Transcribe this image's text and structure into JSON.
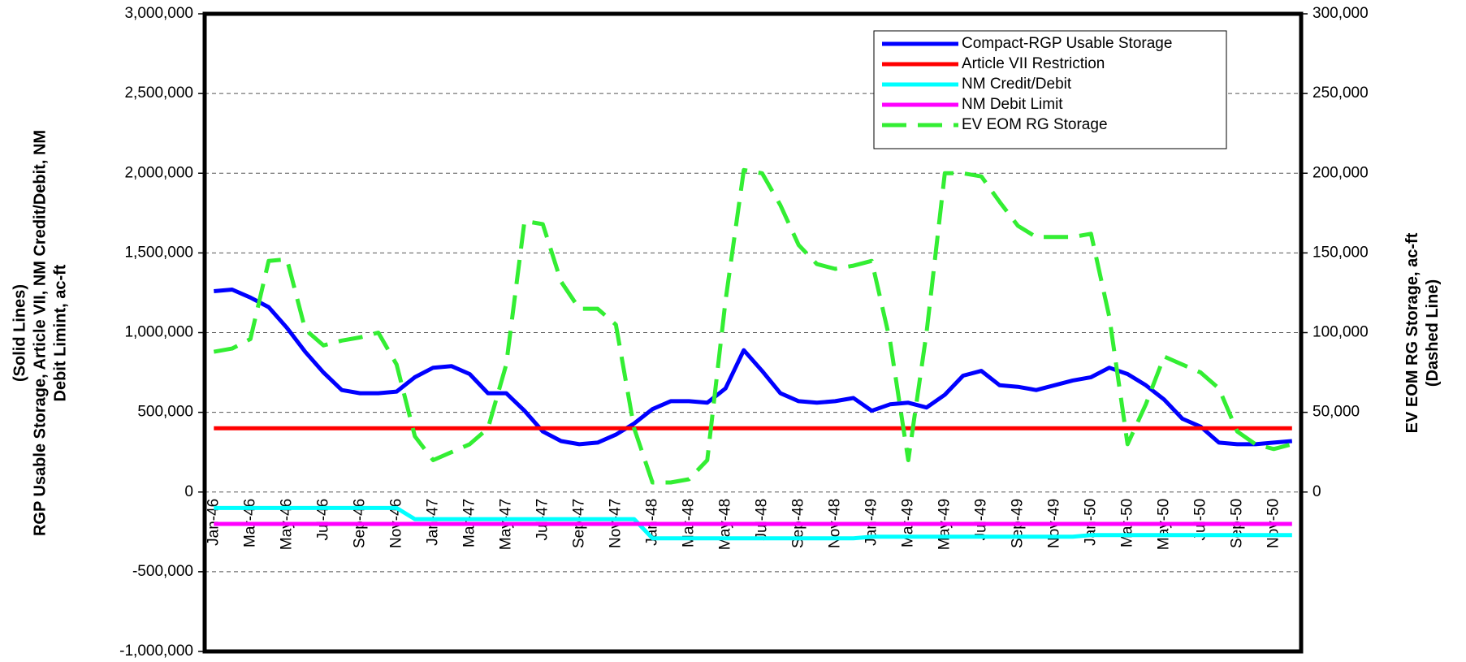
{
  "chart_data": {
    "type": "line",
    "y_label": [
      "(Solid Lines)",
      "RGP Usable Storage, Article VII, NM Credit/Debit, NM",
      "Debit Limint, ac-ft"
    ],
    "y2_label": [
      "EV EOM RG Storage, ac-ft",
      "(Dashed Line)"
    ],
    "categories": [
      "Jan-46",
      null,
      "Mar-46",
      null,
      "May-46",
      null,
      "Jul-46",
      null,
      "Sep-46",
      null,
      "Nov-46",
      null,
      "Jan-47",
      null,
      "Mar-47",
      null,
      "May-47",
      null,
      "Jul-47",
      null,
      "Sep-47",
      null,
      "Nov-47",
      null,
      "Jan-48",
      null,
      "Mar-48",
      null,
      "May-48",
      null,
      "Jul-48",
      null,
      "Sep-48",
      null,
      "Nov-48",
      null,
      "Jan-49",
      null,
      "Mar-49",
      null,
      "May-49",
      null,
      "Jul-49",
      null,
      "Sep-49",
      null,
      "Nov-49",
      null,
      "Jan-50",
      null,
      "Mar-50",
      null,
      "May-50",
      null,
      "Jul-50",
      null,
      "Sep-50",
      null,
      "Nov-50",
      null
    ],
    "series": [
      {
        "name": "Compact-RGP Usable Storage",
        "color": "#0000ff",
        "line_style": "solid",
        "values": [
          1260000,
          1270000,
          1220000,
          1160000,
          1030000,
          880000,
          750000,
          640000,
          620000,
          620000,
          630000,
          720000,
          780000,
          790000,
          740000,
          620000,
          620000,
          510000,
          380000,
          320000,
          300000,
          310000,
          360000,
          430000,
          520000,
          570000,
          570000,
          560000,
          650000,
          890000,
          760000,
          620000,
          570000,
          560000,
          570000,
          590000,
          510000,
          550000,
          560000,
          530000,
          610000,
          730000,
          760000,
          670000,
          660000,
          640000,
          670000,
          700000,
          720000,
          780000,
          740000,
          670000,
          580000,
          460000,
          410000,
          310000,
          300000,
          300000,
          310000,
          320000
        ]
      },
      {
        "name": "Article VII Restriction",
        "color": "#ff0000",
        "line_style": "solid",
        "values": [
          400000,
          400000,
          400000,
          400000,
          400000,
          400000,
          400000,
          400000,
          400000,
          400000,
          400000,
          400000,
          400000,
          400000,
          400000,
          400000,
          400000,
          400000,
          400000,
          400000,
          400000,
          400000,
          400000,
          400000,
          400000,
          400000,
          400000,
          400000,
          400000,
          400000,
          400000,
          400000,
          400000,
          400000,
          400000,
          400000,
          400000,
          400000,
          400000,
          400000,
          400000,
          400000,
          400000,
          400000,
          400000,
          400000,
          400000,
          400000,
          400000,
          400000,
          400000,
          400000,
          400000,
          400000,
          400000,
          400000,
          400000,
          400000,
          400000,
          400000
        ]
      },
      {
        "name": "NM Credit/Debit",
        "color": "#00ffff",
        "line_style": "solid",
        "values": [
          -100000,
          -100000,
          -100000,
          -100000,
          -100000,
          -100000,
          -100000,
          -100000,
          -100000,
          -100000,
          -100000,
          -170000,
          -170000,
          -170000,
          -170000,
          -170000,
          -170000,
          -170000,
          -170000,
          -170000,
          -170000,
          -170000,
          -170000,
          -170000,
          -290000,
          -290000,
          -290000,
          -290000,
          -290000,
          -290000,
          -290000,
          -290000,
          -290000,
          -290000,
          -290000,
          -290000,
          -280000,
          -280000,
          -280000,
          -280000,
          -280000,
          -280000,
          -280000,
          -280000,
          -280000,
          -280000,
          -280000,
          -280000,
          -270000,
          -270000,
          -270000,
          -270000,
          -270000,
          -270000,
          -270000,
          -270000,
          -270000,
          -270000,
          -270000,
          -270000
        ]
      },
      {
        "name": "NM Debit Limit",
        "color": "#ff00ff",
        "line_style": "solid",
        "values": [
          -200000,
          -200000,
          -200000,
          -200000,
          -200000,
          -200000,
          -200000,
          -200000,
          -200000,
          -200000,
          -200000,
          -200000,
          -200000,
          -200000,
          -200000,
          -200000,
          -200000,
          -200000,
          -200000,
          -200000,
          -200000,
          -200000,
          -200000,
          -200000,
          -200000,
          -200000,
          -200000,
          -200000,
          -200000,
          -200000,
          -200000,
          -200000,
          -200000,
          -200000,
          -200000,
          -200000,
          -200000,
          -200000,
          -200000,
          -200000,
          -200000,
          -200000,
          -200000,
          -200000,
          -200000,
          -200000,
          -200000,
          -200000,
          -200000,
          -200000,
          -200000,
          -200000,
          -200000,
          -200000,
          -200000,
          -200000,
          -200000,
          -200000,
          -200000,
          -200000
        ]
      },
      {
        "name": "EV  EOM RG Storage",
        "color": "#33ee33",
        "line_style": "dashed",
        "axis": "y2",
        "values": [
          88000,
          90000,
          96000,
          145000,
          146000,
          102000,
          92000,
          95000,
          97000,
          100000,
          80000,
          35000,
          20000,
          25000,
          30000,
          40000,
          80000,
          170000,
          168000,
          132000,
          115000,
          115000,
          105000,
          40000,
          6000,
          6000,
          8000,
          20000,
          120000,
          202000,
          200000,
          180000,
          155000,
          143000,
          140000,
          142000,
          145000,
          95000,
          20000,
          100000,
          200000,
          200000,
          198000,
          182000,
          167000,
          160000,
          160000,
          160000,
          162000,
          110000,
          30000,
          55000,
          85000,
          80000,
          75000,
          65000,
          38000,
          30000,
          27000,
          30000
        ]
      }
    ],
    "ylim": [
      -1000000,
      3000000
    ],
    "yticks": [
      {
        "value": -1000000,
        "label": "-1,000,000"
      },
      {
        "value": -500000,
        "label": "-500,000"
      },
      0,
      {
        "value": 500000,
        "label": "500,000"
      },
      {
        "value": 1000000,
        "label": "1,000,000"
      },
      {
        "value": 1500000,
        "label": "1,500,000"
      },
      {
        "value": 2000000,
        "label": "2,000,000"
      },
      {
        "value": 2500000,
        "label": "2,500,000"
      },
      {
        "value": 3000000,
        "label": "3,000,000"
      }
    ],
    "y2lim": [
      -100000,
      300000
    ],
    "y2ticks": [
      0,
      {
        "value": 50000,
        "label": "50,000"
      },
      {
        "value": 100000,
        "label": "100,000"
      },
      {
        "value": 150000,
        "label": "150,000"
      },
      {
        "value": 200000,
        "label": "200,000"
      },
      {
        "value": 250000,
        "label": "250,000"
      },
      {
        "value": 300000,
        "label": "300,000"
      }
    ],
    "grid": true,
    "legend": "upper right"
  }
}
